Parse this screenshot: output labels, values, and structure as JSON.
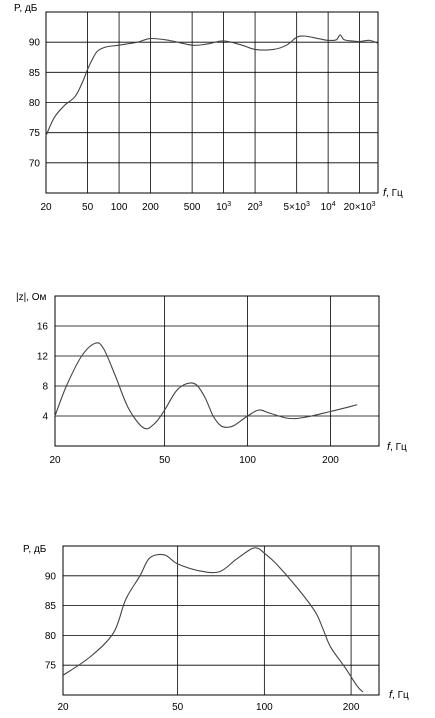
{
  "chart_data": [
    {
      "type": "line",
      "ylabel": "P, дБ",
      "xlabel_var": "f",
      "xlabel_unit": ", Гц",
      "xscale": "log",
      "xlim": [
        20,
        30000
      ],
      "ylim": [
        65,
        95
      ],
      "grid": true,
      "xticks": [
        {
          "v": 20,
          "label": "20"
        },
        {
          "v": 50,
          "label": "50"
        },
        {
          "v": 100,
          "label": "100"
        },
        {
          "v": 200,
          "label": "200"
        },
        {
          "v": 500,
          "label": "500"
        },
        {
          "v": 1000,
          "label": "10",
          "sup": "3"
        },
        {
          "v": 2000,
          "label": "20",
          "sup": "3"
        },
        {
          "v": 5000,
          "label": "5×10",
          "sup": "3"
        },
        {
          "v": 10000,
          "label": "10",
          "sup": "4"
        },
        {
          "v": 20000,
          "label": "20×10",
          "sup": "3"
        }
      ],
      "yticks": [
        70,
        75,
        80,
        85,
        90
      ],
      "series": [
        {
          "x": [
            20,
            24,
            30,
            38,
            45,
            50,
            55,
            62,
            75,
            100,
            150,
            200,
            300,
            500,
            700,
            1000,
            1500,
            2000,
            3000,
            4000,
            5000,
            6000,
            8000,
            10000,
            12000,
            13000,
            14000,
            15000,
            17000,
            20000,
            25000,
            30000
          ],
          "y": [
            74.5,
            77.5,
            79.5,
            81,
            83.5,
            85.5,
            87,
            88.5,
            89.2,
            89.5,
            90,
            90.6,
            90.3,
            89.5,
            89.7,
            90.2,
            89.5,
            88.8,
            88.8,
            89.5,
            90.8,
            91,
            90.6,
            90.3,
            90.4,
            91.2,
            90.5,
            90.3,
            90.2,
            90.1,
            90.3,
            89.8
          ]
        }
      ]
    },
    {
      "type": "line",
      "ylabel": "|z|, Ом",
      "xlabel_var": "f",
      "xlabel_unit": ", Гц",
      "xscale": "log",
      "xlim": [
        20,
        300
      ],
      "ylim": [
        0,
        20
      ],
      "grid": true,
      "xticks": [
        {
          "v": 20,
          "label": "20"
        },
        {
          "v": 50,
          "label": "50"
        },
        {
          "v": 100,
          "label": "100"
        },
        {
          "v": 200,
          "label": "200"
        }
      ],
      "yticks": [
        4,
        8,
        12,
        16
      ],
      "series": [
        {
          "x": [
            20,
            22,
            25,
            28,
            30,
            33,
            37,
            42,
            46,
            50,
            55,
            60,
            65,
            70,
            75,
            80,
            85,
            90,
            100,
            110,
            120,
            140,
            160,
            200,
            250
          ],
          "y": [
            4,
            8,
            12,
            13.7,
            13,
            9.5,
            5,
            2.4,
            3,
            4.8,
            7.3,
            8.3,
            8.2,
            6.5,
            4,
            2.7,
            2.5,
            2.8,
            4,
            4.8,
            4.4,
            3.7,
            3.8,
            4.6,
            5.5
          ]
        }
      ]
    },
    {
      "type": "line",
      "ylabel": "P, дБ",
      "xlabel_var": "f",
      "xlabel_unit": ", Гц",
      "xscale": "log",
      "xlim": [
        20,
        250
      ],
      "ylim": [
        70,
        95
      ],
      "grid": true,
      "xticks": [
        {
          "v": 20,
          "label": "20"
        },
        {
          "v": 50,
          "label": "50"
        },
        {
          "v": 100,
          "label": "100"
        },
        {
          "v": 200,
          "label": "200"
        }
      ],
      "yticks": [
        75,
        80,
        85,
        90
      ],
      "series": [
        {
          "x": [
            20,
            25,
            30,
            33,
            37,
            40,
            45,
            50,
            60,
            70,
            80,
            90,
            95,
            100,
            110,
            130,
            150,
            160,
            170,
            190,
            210,
            220
          ],
          "y": [
            73.3,
            76.5,
            80.5,
            86,
            90,
            93,
            93.5,
            92,
            90.8,
            90.7,
            92.8,
            94.5,
            94.6,
            93.8,
            92,
            88,
            84,
            81,
            78,
            74.7,
            71.5,
            70.5
          ]
        }
      ]
    }
  ]
}
